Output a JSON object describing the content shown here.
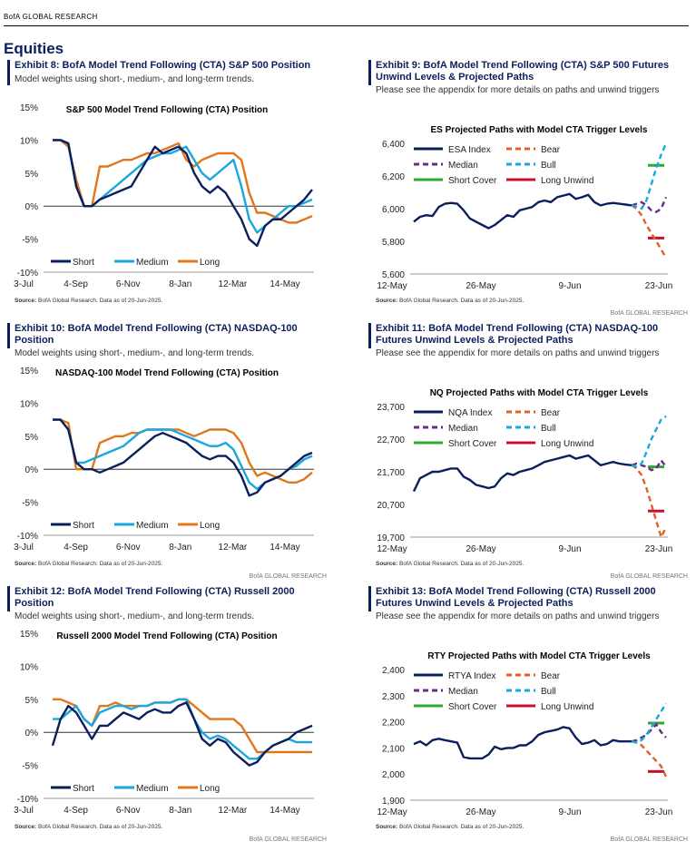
{
  "header": {
    "brand": "BofA GLOBAL RESEARCH",
    "section": "Equities"
  },
  "colors": {
    "short": "#0b1f5c",
    "medium": "#1aa6e0",
    "long": "#e0771c",
    "index": "#0b1f5c",
    "bear": "#e0602a",
    "median": "#6a2a88",
    "bull": "#1aa6e0",
    "shortcover": "#2ea82e",
    "longunwind": "#c8102e"
  },
  "panels": [
    {
      "exhibit": "Exhibit 8: BofA Model Trend Following (CTA) S&P 500 Position",
      "subtitle": "Model weights using short-, medium-, and long-term trends.",
      "source_bold": "Source:",
      "source": " BofA Global Research.  Data as of 20-Jun-2025.",
      "research": ""
    },
    {
      "exhibit": "Exhibit 9: BofA Model Trend Following (CTA) S&P 500 Futures Unwind Levels & Projected Paths",
      "subtitle": "Please see the appendix for more details on paths and unwind triggers",
      "source_bold": "Source:",
      "source": " BofA Global Research.  Data as of 20-Jun-2025.",
      "research": "BofA GLOBAL RESEARCH"
    },
    {
      "exhibit": "Exhibit 10: BofA Model Trend Following (CTA) NASDAQ-100 Position",
      "subtitle": "Model weights using short-, medium-, and long-term trends.",
      "source_bold": "Source:",
      "source": " BofA Global Research.  Data as of 20-Jun-2025.",
      "research": "BofA GLOBAL RESEARCH"
    },
    {
      "exhibit": "Exhibit 11: BofA Model Trend Following (CTA) NASDAQ-100 Futures Unwind Levels & Projected Paths",
      "subtitle": "Please see the appendix for more details on paths and unwind triggers",
      "source_bold": "Source:",
      "source": " BofA Global Research.  Data as of 20-Jun-2025.",
      "research": "BofA GLOBAL RESEARCH"
    },
    {
      "exhibit": "Exhibit 12: BofA Model Trend Following (CTA) Russell 2000 Position",
      "subtitle": "Model weights using short-, medium-, and long-term trends.",
      "source_bold": "Source:",
      "source": " BofA Global Research.  Data as of 20-Jun-2025.",
      "research": "BofA GLOBAL RESEARCH"
    },
    {
      "exhibit": "Exhibit 13: BofA Model Trend Following (CTA) Russell 2000 Futures Unwind Levels & Projected Paths",
      "subtitle": "Please see the appendix for more details on paths and unwind triggers",
      "source_bold": "Source:",
      "source": " BofA Global Research.  Data as of 20-Jun-2025.",
      "research": "BofA GLOBAL RESEARCH"
    }
  ],
  "chart_data": [
    {
      "type": "line",
      "title": "S&P 500 Model Trend Following (CTA) Position",
      "x_ticks": [
        "3-Jul",
        "4-Sep",
        "6-Nov",
        "8-Jan",
        "12-Mar",
        "14-May"
      ],
      "y_ticks": [
        "15%",
        "10%",
        "5%",
        "0%",
        "-5%",
        "-10%"
      ],
      "ylim": [
        -10,
        15
      ],
      "series": [
        {
          "name": "Short",
          "values": [
            10,
            10,
            9.5,
            3,
            0,
            0,
            1,
            1.5,
            2,
            2.5,
            3,
            5,
            7,
            9,
            8,
            8.5,
            9,
            8,
            5,
            3,
            2,
            3,
            2,
            0,
            -2,
            -5,
            -6,
            -3,
            -2,
            -2,
            -1,
            0,
            1,
            2.5
          ]
        },
        {
          "name": "Medium",
          "values": [
            10,
            10,
            9.5,
            3,
            0,
            0,
            1,
            2,
            3,
            4,
            5,
            6,
            7,
            7.5,
            8,
            8,
            8.5,
            9,
            7,
            5,
            4,
            5,
            6,
            7,
            3,
            -2,
            -4,
            -3,
            -2,
            -1,
            0,
            0,
            0.5,
            1
          ]
        },
        {
          "name": "Long",
          "values": [
            10,
            10,
            9,
            4,
            0,
            0,
            6,
            6,
            6.5,
            7,
            7,
            7.5,
            8,
            8,
            8.5,
            9,
            9.5,
            7,
            6,
            7,
            7.5,
            8,
            8,
            8,
            7,
            2,
            -1,
            -1,
            -1.5,
            -2,
            -2.5,
            -2.5,
            -2,
            -1.5
          ]
        }
      ]
    },
    {
      "type": "line",
      "title": "ES Projected Paths with Model CTA Trigger Levels",
      "x_ticks": [
        "12-May",
        "26-May",
        "9-Jun",
        "23-Jun"
      ],
      "y_ticks": [
        "6,400",
        "6,200",
        "6,000",
        "5,800",
        "5,600"
      ],
      "ylim": [
        5600,
        6400
      ],
      "series": [
        {
          "name": "ESA Index",
          "values": [
            5920,
            5950,
            5960,
            5955,
            6010,
            6030,
            6035,
            6030,
            5990,
            5940,
            5920,
            5900,
            5880,
            5900,
            5930,
            5960,
            5950,
            5990,
            6000,
            6010,
            6040,
            6050,
            6040,
            6070,
            6080,
            6090,
            6060,
            6070,
            6085,
            6040,
            6020,
            6030,
            6035,
            6030,
            6025,
            6020
          ]
        },
        {
          "name": "Bear",
          "values": [
            6020,
            6000,
            5960,
            5900,
            5850,
            5800,
            5750,
            5700
          ]
        },
        {
          "name": "Median",
          "values": [
            6020,
            6030,
            6040,
            6020,
            5990,
            5980,
            6000,
            6070
          ]
        },
        {
          "name": "Bull",
          "values": [
            6020,
            6010,
            6000,
            6050,
            6150,
            6250,
            6330,
            6400
          ]
        },
        {
          "name": "Short Cover",
          "level": 6265
        },
        {
          "name": "Long Unwind",
          "level": 5820
        }
      ]
    },
    {
      "type": "line",
      "title": "NASDAQ-100 Model Trend Following (CTA) Position",
      "x_ticks": [
        "3-Jul",
        "4-Sep",
        "6-Nov",
        "8-Jan",
        "12-Mar",
        "14-May"
      ],
      "y_ticks": [
        "15%",
        "10%",
        "5%",
        "0%",
        "-5%",
        "-10%"
      ],
      "ylim": [
        -10,
        15
      ],
      "series": [
        {
          "name": "Short",
          "values": [
            7.5,
            7.5,
            6,
            1,
            0,
            0,
            -0.5,
            0,
            0.5,
            1,
            2,
            3,
            4,
            5,
            5.5,
            5,
            4.5,
            4,
            3,
            2,
            1.5,
            2,
            2,
            1,
            -1,
            -4,
            -3.5,
            -2,
            -1.5,
            -1,
            0,
            1,
            2,
            2.5
          ]
        },
        {
          "name": "Medium",
          "values": [
            7.5,
            7.5,
            6,
            1,
            1,
            1.5,
            2,
            2.5,
            3,
            3.5,
            4.5,
            5.5,
            6,
            6,
            6,
            6,
            5.5,
            5,
            4.5,
            4,
            3.5,
            3.5,
            4,
            3,
            0.5,
            -2,
            -3,
            -2,
            -1.5,
            -1,
            0,
            0.5,
            1.5,
            2
          ]
        },
        {
          "name": "Long",
          "values": [
            7.5,
            7.5,
            7,
            0,
            0,
            0,
            4,
            4.5,
            5,
            5,
            5.5,
            5.5,
            6,
            6,
            6,
            6,
            6,
            5.5,
            5,
            5.5,
            6,
            6,
            6,
            5.5,
            4,
            1,
            -1,
            -0.5,
            -1,
            -1.5,
            -2,
            -2,
            -1.5,
            -0.5
          ]
        }
      ]
    },
    {
      "type": "line",
      "title": "NQ Projected Paths with Model CTA Trigger Levels",
      "x_ticks": [
        "12-May",
        "26-May",
        "9-Jun",
        "23-Jun"
      ],
      "y_ticks": [
        "23,700",
        "22,700",
        "21,700",
        "20,700",
        "19,700"
      ],
      "ylim": [
        19700,
        23700
      ],
      "series": [
        {
          "name": "NQA Index",
          "values": [
            21100,
            21500,
            21600,
            21700,
            21700,
            21750,
            21800,
            21800,
            21550,
            21450,
            21300,
            21250,
            21200,
            21250,
            21500,
            21650,
            21600,
            21700,
            21750,
            21800,
            21900,
            22000,
            22050,
            22100,
            22150,
            22200,
            22100,
            22150,
            22200,
            22050,
            21900,
            21950,
            22000,
            21950,
            21920,
            21900
          ]
        },
        {
          "name": "Bear",
          "values": [
            21900,
            21800,
            21600,
            21200,
            20700,
            20200,
            19700,
            20000
          ]
        },
        {
          "name": "Median",
          "values": [
            21900,
            21950,
            21900,
            21850,
            21750,
            21800,
            22050,
            21850
          ]
        },
        {
          "name": "Bull",
          "values": [
            21900,
            21850,
            21950,
            22300,
            22700,
            23000,
            23300,
            23400
          ]
        },
        {
          "name": "Short Cover",
          "level": 21850
        },
        {
          "name": "Long Unwind",
          "level": 20500
        }
      ]
    },
    {
      "type": "line",
      "title": "Russell 2000 Model Trend Following (CTA) Position",
      "x_ticks": [
        "3-Jul",
        "4-Sep",
        "6-Nov",
        "8-Jan",
        "12-Mar",
        "14-May"
      ],
      "y_ticks": [
        "15%",
        "10%",
        "5%",
        "0%",
        "-5%",
        "-10%"
      ],
      "ylim": [
        -10,
        15
      ],
      "series": [
        {
          "name": "Short",
          "values": [
            -2,
            2,
            4,
            3,
            1,
            -1,
            1,
            1,
            2,
            3,
            2.5,
            2,
            3,
            3.5,
            3,
            3,
            4,
            4.5,
            2,
            -1,
            -2,
            -1,
            -1.5,
            -3,
            -4,
            -5,
            -4.5,
            -3,
            -2,
            -1.5,
            -1,
            0,
            0.5,
            1
          ]
        },
        {
          "name": "Medium",
          "values": [
            2,
            2,
            3,
            4,
            2,
            1,
            3,
            3.5,
            4,
            4,
            3.5,
            4,
            4,
            4.5,
            4.5,
            4.5,
            5,
            5,
            2,
            0,
            -1,
            -0.5,
            -1,
            -2,
            -3,
            -4,
            -4,
            -3,
            -2,
            -1.5,
            -1,
            -1.5,
            -1.5,
            -1.5
          ]
        },
        {
          "name": "Long",
          "values": [
            5,
            5,
            4.5,
            4,
            2,
            1,
            4,
            4,
            4.5,
            4,
            4,
            4,
            4,
            4.5,
            4.5,
            4.5,
            5,
            5,
            4,
            3,
            2,
            2,
            2,
            2,
            1,
            -1,
            -3,
            -3,
            -3,
            -3,
            -3,
            -3,
            -3,
            -3
          ]
        }
      ]
    },
    {
      "type": "line",
      "title": "RTY Projected Paths with Model CTA Trigger Levels",
      "x_ticks": [
        "12-May",
        "26-May",
        "9-Jun",
        "23-Jun"
      ],
      "y_ticks": [
        "2,400",
        "2,300",
        "2,200",
        "2,100",
        "2,000",
        "1,900"
      ],
      "ylim": [
        1900,
        2400
      ],
      "series": [
        {
          "name": "RTYA Index",
          "values": [
            2115,
            2125,
            2110,
            2130,
            2135,
            2130,
            2125,
            2120,
            2065,
            2060,
            2060,
            2060,
            2075,
            2105,
            2095,
            2100,
            2100,
            2110,
            2110,
            2125,
            2150,
            2160,
            2165,
            2170,
            2180,
            2175,
            2140,
            2115,
            2120,
            2130,
            2110,
            2115,
            2130,
            2125,
            2125,
            2125
          ]
        },
        {
          "name": "Bear",
          "values": [
            2125,
            2120,
            2110,
            2090,
            2070,
            2050,
            2030,
            1990
          ]
        },
        {
          "name": "Median",
          "values": [
            2125,
            2130,
            2140,
            2150,
            2170,
            2190,
            2160,
            2140
          ]
        },
        {
          "name": "Bull",
          "values": [
            2125,
            2120,
            2130,
            2150,
            2180,
            2210,
            2240,
            2270
          ]
        },
        {
          "name": "Short Cover",
          "level": 2195
        },
        {
          "name": "Long Unwind",
          "level": 2010
        }
      ]
    }
  ]
}
